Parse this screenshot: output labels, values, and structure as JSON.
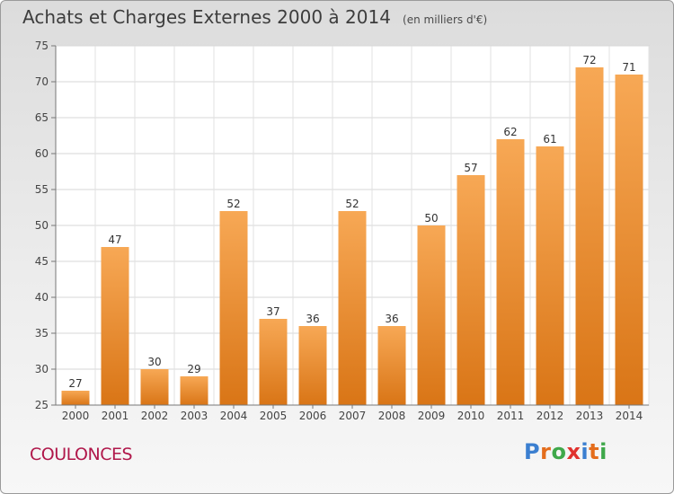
{
  "header": {
    "title": "Achats et Charges Externes 2000 à 2014",
    "subtitle": "(en milliers d'€)"
  },
  "footer": {
    "city": "COULONCES",
    "logo": "Proxiti"
  },
  "colors": {
    "bar_top": "#f7a855",
    "bar_bottom": "#d97516",
    "city": "#b0174a",
    "logo_letters": [
      "#3b7fd0",
      "#e46d1c",
      "#3fa84a",
      "#e0322e",
      "#3b7fd0",
      "#e46d1c",
      "#3fa84a"
    ]
  },
  "chart_data": {
    "type": "bar",
    "title": "Achats et Charges Externes 2000 à 2014",
    "subtitle": "(en milliers d'€)",
    "categories": [
      "2000",
      "2001",
      "2002",
      "2003",
      "2004",
      "2005",
      "2006",
      "2007",
      "2008",
      "2009",
      "2010",
      "2011",
      "2012",
      "2013",
      "2014"
    ],
    "values": [
      27,
      47,
      30,
      29,
      52,
      37,
      36,
      52,
      36,
      50,
      57,
      62,
      61,
      72,
      71
    ],
    "ylim": [
      25,
      75
    ],
    "yticks": [
      25,
      30,
      35,
      40,
      45,
      50,
      55,
      60,
      65,
      70,
      75
    ],
    "grid": true,
    "data_labels": true,
    "xlabel": "",
    "ylabel": ""
  }
}
